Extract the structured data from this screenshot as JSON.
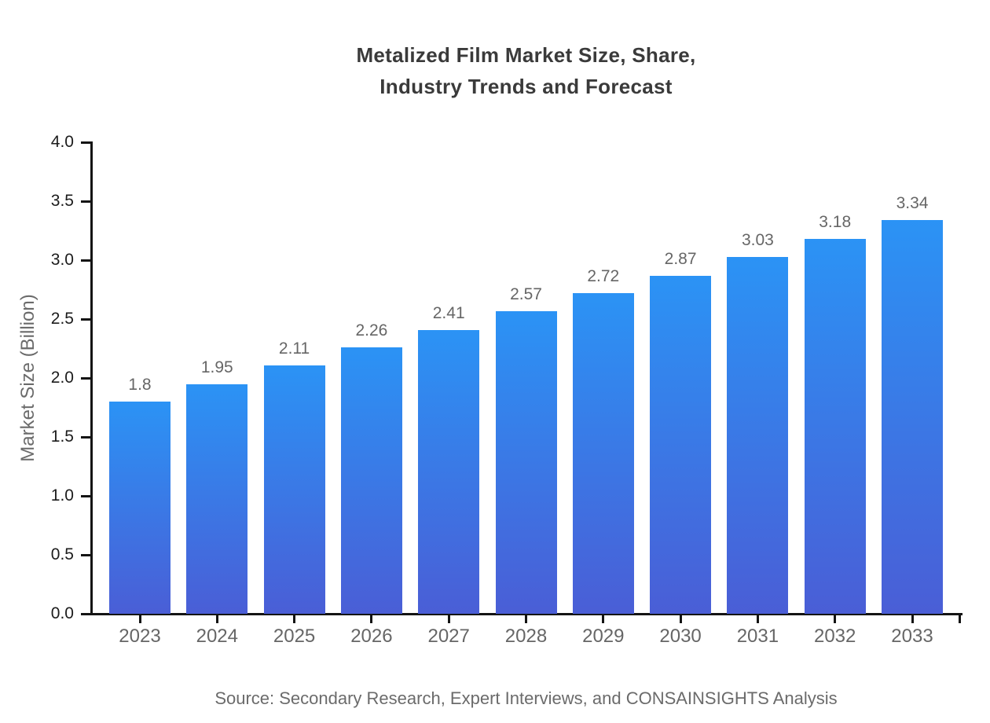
{
  "title": {
    "line1": "Metalized Film Market Size, Share,",
    "line2": "Industry Trends and Forecast"
  },
  "footer": {
    "source": "Source: Secondary Research, Expert Interviews, and CONSAINSIGHTS Analysis"
  },
  "chart_data": {
    "type": "bar",
    "title": "Metalized Film Market Size, Share, Industry Trends and Forecast",
    "categories": [
      "2023",
      "2024",
      "2025",
      "2026",
      "2027",
      "2028",
      "2029",
      "2030",
      "2031",
      "2032",
      "2033"
    ],
    "values": [
      1.8,
      1.95,
      2.11,
      2.26,
      2.41,
      2.57,
      2.72,
      2.87,
      3.03,
      3.18,
      3.34
    ],
    "value_labels": [
      "1.8",
      "1.95",
      "2.11",
      "2.26",
      "2.41",
      "2.57",
      "2.72",
      "2.87",
      "3.03",
      "3.18",
      "3.34"
    ],
    "xlabel": "",
    "ylabel": "Market Size (Billion)",
    "ylim": [
      0,
      4
    ],
    "ytick_step": 0.5,
    "ytick_labels": [
      "0.0",
      "0.5",
      "1.0",
      "1.5",
      "2.0",
      "2.5",
      "3.0",
      "3.5",
      "4.0"
    ],
    "grid": false,
    "legend": null
  },
  "colors": {
    "bar_gradient_top": "#2b93f5",
    "bar_gradient_bottom": "#4a5ed6",
    "axis": "#141414",
    "title_text": "#3a3a3a",
    "tick_text": "#1c1c1c",
    "muted_text": "#666666",
    "soft_text": "#6b6b6b",
    "background": "#ffffff"
  }
}
